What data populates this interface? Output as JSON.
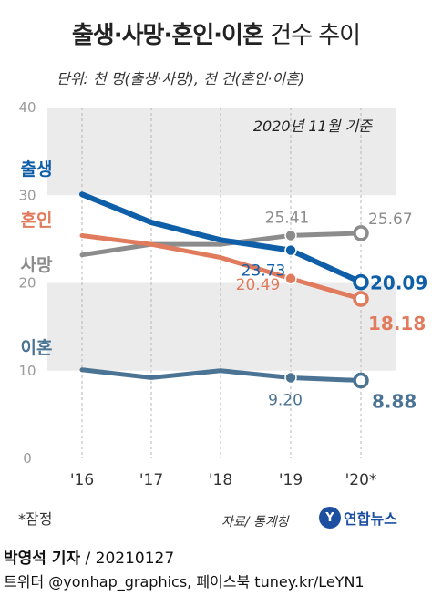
{
  "title": {
    "main": "출생·사망·혼인·이혼",
    "sub": " 건수 추이"
  },
  "unit_note": "단위: 천 명(출생·사망), 천 건(혼인·이혼)",
  "colors": {
    "birth": "#0f5fa8",
    "marriage": "#e07b5d",
    "death": "#8c8c8c",
    "divorce": "#4a7394",
    "band": "#ebebeb",
    "axis_text": "#9a9a9a"
  },
  "chart_data": {
    "type": "line",
    "annotation": "2020년 11월 기준",
    "categories": [
      "'16",
      "'17",
      "'18",
      "'19",
      "'20*"
    ],
    "ylim": [
      0,
      40
    ],
    "yticks": [
      0,
      10,
      20,
      30,
      40
    ],
    "grid": false,
    "series": [
      {
        "name": "출생",
        "key": "birth",
        "values": [
          30.1,
          26.9,
          24.9,
          23.73,
          20.09
        ],
        "labels": [
          "",
          "",
          "",
          "23.73",
          "20.09"
        ]
      },
      {
        "name": "혼인",
        "key": "marriage",
        "values": [
          25.4,
          24.4,
          22.9,
          20.49,
          18.18
        ],
        "labels": [
          "",
          "",
          "",
          "20.49",
          "18.18"
        ]
      },
      {
        "name": "사망",
        "key": "death",
        "values": [
          23.2,
          24.4,
          24.4,
          25.41,
          25.67
        ],
        "labels": [
          "",
          "",
          "",
          "25.41",
          "25.67"
        ]
      },
      {
        "name": "이혼",
        "key": "divorce",
        "values": [
          10.1,
          9.2,
          10.0,
          9.2,
          8.88
        ],
        "labels": [
          "",
          "",
          "",
          "9.20",
          "8.88"
        ]
      }
    ]
  },
  "footnote": "*잠정",
  "source": "자료/ 통계청",
  "logo": {
    "mark": "Y",
    "text": "연합뉴스"
  },
  "credit": {
    "reporter": "박영석 기자",
    "date": " / 20210127"
  },
  "social": "트위터 @yonhap_graphics, 페이스북 tuney.kr/LeYN1"
}
